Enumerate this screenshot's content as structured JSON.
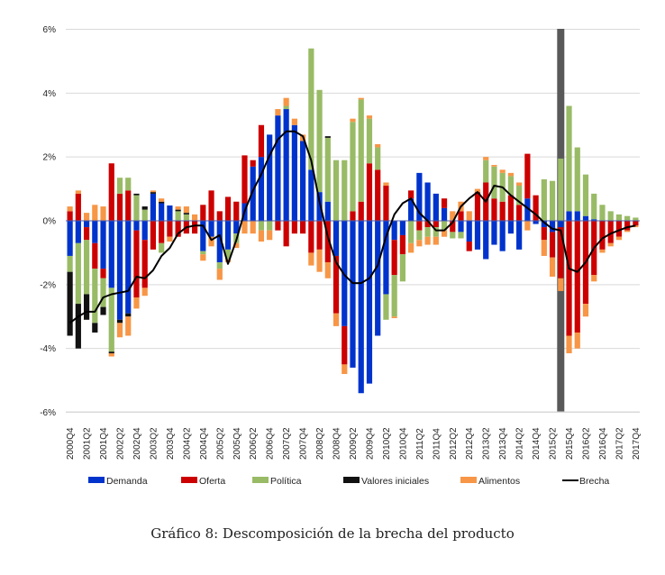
{
  "chart_data": {
    "type": "bar",
    "stacked": true,
    "title": "",
    "caption": "Gráfico 8: Descomposición de la brecha del producto",
    "xlabel": "",
    "ylabel": "",
    "ylim": [
      -6,
      6
    ],
    "yticks": [
      -6,
      -4,
      -2,
      0,
      2,
      4,
      6
    ],
    "ytick_labels": [
      "-6%",
      "-4%",
      "-2%",
      "0%",
      "2%",
      "4%",
      "6%"
    ],
    "grid": true,
    "legend_position": "bottom",
    "highlight_category": "2015Q3",
    "categories": [
      "2000Q4",
      "2001Q1",
      "2001Q2",
      "2001Q3",
      "2001Q4",
      "2002Q1",
      "2002Q2",
      "2002Q3",
      "2002Q4",
      "2003Q1",
      "2003Q2",
      "2003Q3",
      "2003Q4",
      "2004Q1",
      "2004Q2",
      "2004Q3",
      "2004Q4",
      "2005Q1",
      "2005Q2",
      "2005Q3",
      "2005Q4",
      "2006Q1",
      "2006Q2",
      "2006Q3",
      "2006Q4",
      "2007Q1",
      "2007Q2",
      "2007Q3",
      "2007Q4",
      "2008Q1",
      "2008Q2",
      "2008Q3",
      "2008Q4",
      "2009Q1",
      "2009Q2",
      "2009Q3",
      "2009Q4",
      "2010Q1",
      "2010Q2",
      "2010Q3",
      "2010Q4",
      "2011Q1",
      "2011Q2",
      "2011Q3",
      "2011Q4",
      "2012Q1",
      "2012Q2",
      "2012Q3",
      "2012Q4",
      "2013Q1",
      "2013Q2",
      "2013Q3",
      "2013Q4",
      "2014Q1",
      "2014Q2",
      "2014Q3",
      "2014Q4",
      "2015Q1",
      "2015Q2",
      "2015Q3",
      "2015Q4",
      "2016Q1",
      "2016Q2",
      "2016Q3",
      "2016Q4",
      "2017Q1",
      "2017Q2",
      "2017Q3",
      "2017Q4"
    ],
    "xtick_labels": [
      "2000Q4",
      "2001Q2",
      "2001Q4",
      "2002Q2",
      "2002Q4",
      "2003Q2",
      "2003Q4",
      "2004Q2",
      "2004Q4",
      "2005Q2",
      "2005Q4",
      "2006Q2",
      "2006Q4",
      "2007Q2",
      "2007Q4",
      "2008Q2",
      "2008Q4",
      "2009Q2",
      "2009Q4",
      "2010Q2",
      "2010Q4",
      "2011Q2",
      "2011Q4",
      "2012Q2",
      "2012Q4",
      "2013Q2",
      "2013Q4",
      "2014Q2",
      "2014Q4",
      "2015Q2",
      "2015Q4",
      "2016Q2",
      "2016Q4",
      "2017Q2",
      "2017Q4"
    ],
    "series": [
      {
        "name": "Demanda",
        "color": "#0033cc",
        "values": [
          -1.1,
          -0.7,
          -0.2,
          -0.7,
          -1.5,
          -2.1,
          -3.1,
          -2.9,
          -0.3,
          -0.6,
          0.85,
          0.55,
          0.48,
          0.0,
          0.0,
          0.0,
          -0.95,
          -0.5,
          -1.3,
          -0.9,
          -0.4,
          0.55,
          1.7,
          2.0,
          2.7,
          3.3,
          3.5,
          3.0,
          2.5,
          1.6,
          0.9,
          0.6,
          -1.1,
          -3.3,
          -4.6,
          -5.4,
          -5.1,
          -3.6,
          -2.3,
          -0.6,
          -0.45,
          0.7,
          1.5,
          1.2,
          0.85,
          0.4,
          0.0,
          -0.35,
          -0.65,
          -0.9,
          -1.2,
          -0.75,
          -0.95,
          -0.4,
          -0.9,
          0.7,
          -0.1,
          -0.2,
          -0.35,
          -0.2,
          0.3,
          0.3,
          0.15,
          0.05,
          0.0,
          0.0,
          0.0,
          0.0,
          0.0
        ]
      },
      {
        "name": "Oferta",
        "color": "#cc0000",
        "values": [
          0.3,
          0.85,
          -0.4,
          -0.8,
          -0.3,
          1.8,
          0.85,
          0.95,
          -2.1,
          -1.5,
          -0.9,
          -0.7,
          -0.5,
          -0.5,
          -0.4,
          -0.4,
          0.5,
          0.95,
          0.3,
          0.75,
          0.6,
          1.5,
          0.2,
          1.0,
          0.0,
          -0.3,
          -0.8,
          -0.4,
          -0.4,
          -1.0,
          -0.9,
          -1.3,
          -1.8,
          -1.2,
          0.3,
          0.6,
          1.8,
          1.6,
          1.1,
          -1.1,
          -0.6,
          0.25,
          -0.3,
          -0.2,
          -0.2,
          0.3,
          -0.35,
          0.3,
          -0.3,
          0.9,
          1.2,
          0.7,
          0.6,
          0.8,
          0.5,
          1.4,
          0.8,
          -0.4,
          -0.8,
          -1.6,
          -3.6,
          -3.5,
          -2.6,
          -1.7,
          -0.9,
          -0.7,
          -0.5,
          -0.3,
          -0.15
        ]
      },
      {
        "name": "Política",
        "color": "#99bb66",
        "values": [
          -0.5,
          -1.9,
          -1.7,
          -1.7,
          -0.9,
          -2.0,
          0.5,
          0.4,
          0.8,
          0.35,
          0.0,
          -0.3,
          0.0,
          0.3,
          0.2,
          0.0,
          -0.1,
          0.0,
          -0.2,
          -0.3,
          -0.3,
          0.0,
          0.0,
          -0.3,
          -0.3,
          0.0,
          0.1,
          0.0,
          0.0,
          3.8,
          3.2,
          2.0,
          1.9,
          1.9,
          2.8,
          3.2,
          1.4,
          0.7,
          -0.8,
          -1.3,
          -0.85,
          -0.7,
          -0.3,
          -0.3,
          -0.3,
          -0.3,
          -0.2,
          -0.2,
          0.0,
          0.0,
          0.7,
          1.0,
          0.9,
          0.6,
          0.6,
          0.0,
          0.0,
          1.3,
          1.25,
          1.95,
          3.3,
          2.0,
          1.3,
          0.8,
          0.5,
          0.3,
          0.2,
          0.15,
          0.1
        ]
      },
      {
        "name": "Valores iniciales",
        "color": "#111111",
        "values": [
          -2.0,
          -1.4,
          -0.8,
          -0.3,
          -0.25,
          -0.05,
          -0.1,
          -0.1,
          0.05,
          0.1,
          0.05,
          0.05,
          0.0,
          0.05,
          0.05,
          0.0,
          0.0,
          0.0,
          0.0,
          0.0,
          0.0,
          0.0,
          0.0,
          0.0,
          0.0,
          0.0,
          0.0,
          0.0,
          0.0,
          0.0,
          0.0,
          0.05,
          0.0,
          0.0,
          0.0,
          0.0,
          0.0,
          0.0,
          0.0,
          0.0,
          0.0,
          0.0,
          0.0,
          0.0,
          0.0,
          0.0,
          0.0,
          0.0,
          0.0,
          0.0,
          0.0,
          0.0,
          0.0,
          0.0,
          0.0,
          0.0,
          0.0,
          0.0,
          0.0,
          0.0,
          0.0,
          0.0,
          0.0,
          0.0,
          0.0,
          0.0,
          0.0,
          0.0,
          0.0
        ]
      },
      {
        "name": "Alimentos",
        "color": "#f79646",
        "values": [
          0.15,
          0.1,
          0.25,
          0.5,
          0.45,
          -0.1,
          -0.45,
          -0.6,
          -0.35,
          -0.25,
          0.05,
          0.1,
          -0.15,
          0.1,
          0.2,
          0.2,
          -0.2,
          -0.3,
          -0.35,
          -0.1,
          -0.15,
          -0.4,
          -0.4,
          -0.35,
          -0.3,
          0.2,
          0.25,
          0.2,
          0.2,
          -0.4,
          -0.7,
          -0.5,
          -0.4,
          -0.3,
          0.1,
          0.05,
          0.1,
          0.1,
          0.1,
          -0.05,
          0.0,
          -0.3,
          -0.2,
          -0.25,
          -0.25,
          -0.2,
          0.3,
          0.3,
          0.3,
          0.1,
          0.1,
          0.05,
          0.1,
          0.1,
          0.1,
          -0.3,
          0.0,
          -0.5,
          -0.6,
          -0.4,
          -0.55,
          -0.5,
          -0.4,
          -0.2,
          -0.1,
          -0.1,
          -0.1,
          -0.05,
          -0.05
        ]
      }
    ],
    "line": {
      "name": "Brecha",
      "color": "#000000",
      "values": [
        -3.2,
        -3.0,
        -2.85,
        -2.85,
        -2.4,
        -2.3,
        -2.25,
        -2.2,
        -1.75,
        -1.8,
        -1.55,
        -1.1,
        -0.85,
        -0.4,
        -0.2,
        -0.15,
        -0.15,
        -0.6,
        -0.45,
        -1.35,
        -0.6,
        0.3,
        0.95,
        1.45,
        2.05,
        2.55,
        2.8,
        2.8,
        2.65,
        1.9,
        0.6,
        -0.5,
        -1.3,
        -1.7,
        -1.95,
        -1.95,
        -1.8,
        -1.4,
        -0.5,
        0.2,
        0.55,
        0.7,
        0.25,
        0.0,
        -0.3,
        -0.3,
        -0.05,
        0.45,
        0.7,
        0.9,
        0.6,
        1.1,
        1.05,
        0.8,
        0.6,
        0.4,
        0.2,
        -0.05,
        -0.25,
        -0.3,
        -1.5,
        -1.6,
        -1.3,
        -0.85,
        -0.55,
        -0.4,
        -0.3,
        -0.2,
        -0.15
      ]
    },
    "legend": [
      {
        "label": "Demanda",
        "kind": "bar",
        "color": "#0033cc"
      },
      {
        "label": "Oferta",
        "kind": "bar",
        "color": "#cc0000"
      },
      {
        "label": "Política",
        "kind": "bar",
        "color": "#99bb66"
      },
      {
        "label": "Valores iniciales",
        "kind": "bar",
        "color": "#111111"
      },
      {
        "label": "Alimentos",
        "kind": "bar",
        "color": "#f79646"
      },
      {
        "label": "Brecha",
        "kind": "line",
        "color": "#000000"
      }
    ]
  }
}
